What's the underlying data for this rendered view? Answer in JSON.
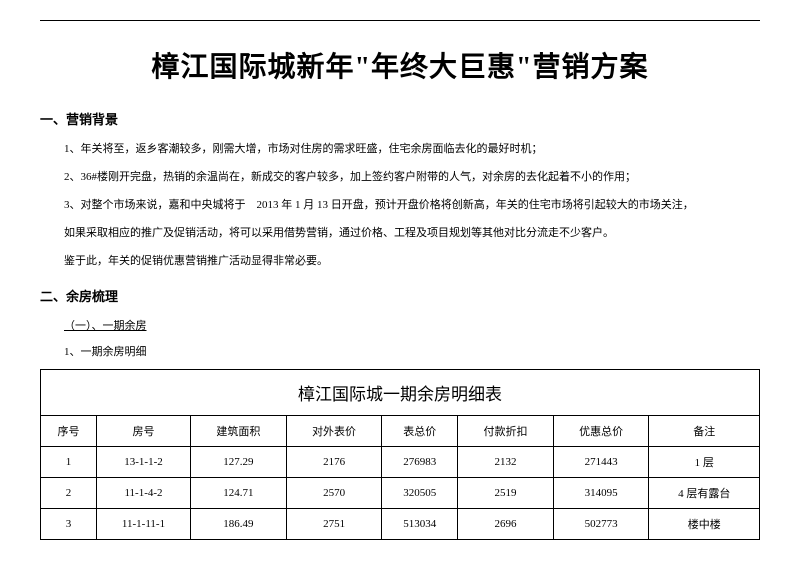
{
  "title": "樟江国际城新年\"年终大巨惠\"营销方案",
  "section1": {
    "heading": "一、营销背景",
    "p1": "1、年关将至，返乡客潮较多，刚需大增，市场对住房的需求旺盛，住宅余房面临去化的最好时机；",
    "p2": "2、36#楼刚开完盘，热销的余温尚在，新成交的客户较多，加上签约客户附带的人气，对余房的去化起着不小的作用；",
    "p3": "3、对整个市场来说，嘉和中央城将于　2013 年 1 月 13 日开盘，预计开盘价格将创新高，年关的住宅市场将引起较大的市场关注，",
    "p3b": "如果采取相应的推广及促销活动，将可以采用借势营销，通过价格、工程及项目规划等其他对比分流走不少客户。",
    "p3c": "鉴于此，年关的促销优惠营销推广活动显得非常必要。"
  },
  "section2": {
    "heading": "二、余房梳理",
    "sub1": "（一）、一期余房",
    "item1": "1、一期余房明细"
  },
  "table": {
    "caption": "樟江国际城一期余房明细表",
    "headers": [
      "序号",
      "房号",
      "建筑面积",
      "对外表价",
      "表总价",
      "付款折扣",
      "优惠总价",
      "备注"
    ],
    "rows": [
      [
        "1",
        "13-1-1-2",
        "127.29",
        "2176",
        "276983",
        "2132",
        "271443",
        "1 层"
      ],
      [
        "2",
        "11-1-4-2",
        "124.71",
        "2570",
        "320505",
        "2519",
        "314095",
        "4 层有露台"
      ],
      [
        "3",
        "11-1-11-1",
        "186.49",
        "2751",
        "513034",
        "2696",
        "502773",
        "楼中楼"
      ]
    ]
  }
}
